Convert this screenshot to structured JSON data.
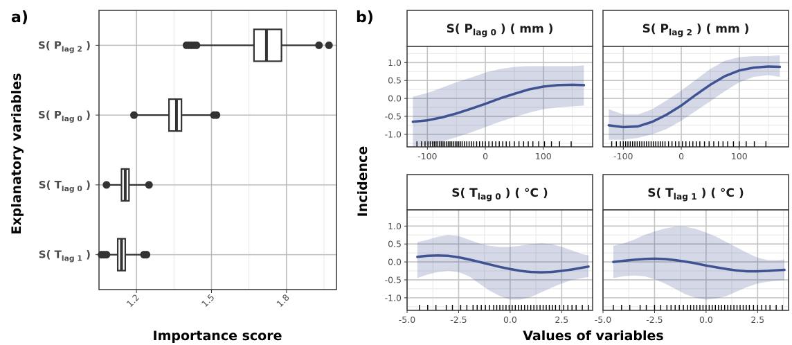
{
  "chart_data": [
    {
      "type": "boxplot",
      "panel_label": "a)",
      "xlabel": "Importance score",
      "ylabel": "Explanatory variables",
      "xlim": [
        1.05,
        2.0
      ],
      "xticks": [
        1.2,
        1.5,
        1.8
      ],
      "xtick_labels": [
        "1.2",
        "1.5",
        "1.8"
      ],
      "grid": true,
      "boxes": [
        {
          "label_main": "S( P",
          "label_sub": "lag 2",
          "label_end": " )",
          "whisker_low": 1.43,
          "q1": 1.67,
          "median": 1.72,
          "q3": 1.78,
          "whisker_high": 1.93,
          "outliers": [
            1.4,
            1.41,
            1.42,
            1.43,
            1.44,
            1.93,
            1.97
          ]
        },
        {
          "label_main": "S( P",
          "label_sub": "lag 0",
          "label_end": " )",
          "whisker_low": 1.19,
          "q1": 1.33,
          "median": 1.36,
          "q3": 1.38,
          "whisker_high": 1.51,
          "outliers": [
            1.19,
            1.51,
            1.52
          ]
        },
        {
          "label_main": "S( T",
          "label_sub": "lag 0",
          "label_end": " )",
          "whisker_low": 1.08,
          "q1": 1.14,
          "median": 1.155,
          "q3": 1.17,
          "whisker_high": 1.25,
          "outliers": [
            1.08,
            1.25
          ]
        },
        {
          "label_main": "S( T",
          "label_sub": "lag 1",
          "label_end": " )",
          "whisker_low": 1.06,
          "q1": 1.125,
          "median": 1.14,
          "q3": 1.155,
          "whisker_high": 1.23,
          "outliers": [
            1.06,
            1.07,
            1.08,
            1.23,
            1.24
          ]
        }
      ]
    },
    {
      "type": "line",
      "panel_label": "b)",
      "xlabel": "Values of variables",
      "ylabel": "Incidence",
      "ylim": [
        -1.35,
        1.45
      ],
      "yticks": [
        -1.0,
        -0.5,
        0.0,
        0.5,
        1.0
      ],
      "ytick_labels": [
        "-1.0",
        "-0.5",
        "0.0",
        "0.5",
        "1.0"
      ],
      "panels": [
        {
          "title_main": "S( P",
          "title_sub": "lag 0",
          "title_end": " ) ( mm )",
          "xlim": [
            -135,
            185
          ],
          "xticks": [
            -100,
            0,
            100
          ],
          "xtick_labels": [
            "-100",
            "0",
            "100"
          ],
          "show_xticks": true,
          "x": [
            -125,
            -100,
            -75,
            -50,
            -25,
            0,
            25,
            50,
            75,
            100,
            125,
            150,
            170
          ],
          "y": [
            -0.65,
            -0.61,
            -0.53,
            -0.42,
            -0.29,
            -0.15,
            0.0,
            0.13,
            0.25,
            0.33,
            0.37,
            0.38,
            0.37
          ],
          "lower": [
            -1.35,
            -1.3,
            -1.2,
            -1.08,
            -0.95,
            -0.8,
            -0.65,
            -0.52,
            -0.4,
            -0.3,
            -0.25,
            -0.22,
            -0.2
          ],
          "upper": [
            0.05,
            0.15,
            0.3,
            0.45,
            0.58,
            0.72,
            0.82,
            0.88,
            0.9,
            0.9,
            0.9,
            0.9,
            0.92
          ],
          "rug": [
            -118,
            -110,
            -104,
            -99,
            -95,
            -91,
            -88,
            -85,
            -82,
            -79,
            -76,
            -73,
            -70,
            -67,
            -64,
            -61,
            -58,
            -55,
            -52,
            -49,
            -46,
            -43,
            -40,
            -36,
            -32,
            -28,
            -24,
            -20,
            -15,
            -10,
            -5,
            0,
            6,
            12,
            18,
            24,
            30,
            36,
            42,
            50,
            58,
            66,
            74,
            82,
            92,
            102,
            114,
            128,
            148
          ]
        },
        {
          "title_main": "S( P",
          "title_sub": "lag 2",
          "title_end": " ) ( mm )",
          "xlim": [
            -135,
            185
          ],
          "xticks": [
            -100,
            0,
            100
          ],
          "xtick_labels": [
            "-100",
            "0",
            "100"
          ],
          "show_xticks": true,
          "x": [
            -125,
            -100,
            -75,
            -50,
            -25,
            0,
            25,
            50,
            75,
            100,
            125,
            150,
            170
          ],
          "y": [
            -0.75,
            -0.8,
            -0.78,
            -0.65,
            -0.45,
            -0.2,
            0.1,
            0.38,
            0.62,
            0.78,
            0.86,
            0.89,
            0.88
          ],
          "lower": [
            -1.15,
            -1.15,
            -1.1,
            -1.0,
            -0.85,
            -0.62,
            -0.35,
            -0.08,
            0.2,
            0.45,
            0.6,
            0.65,
            0.6
          ],
          "upper": [
            -0.3,
            -0.45,
            -0.45,
            -0.3,
            -0.05,
            0.22,
            0.52,
            0.82,
            1.05,
            1.15,
            1.18,
            1.18,
            1.2
          ],
          "rug": [
            -120,
            -112,
            -105,
            -100,
            -96,
            -92,
            -88,
            -84,
            -80,
            -76,
            -72,
            -68,
            -64,
            -60,
            -56,
            -52,
            -48,
            -44,
            -40,
            -36,
            -32,
            -28,
            -22,
            -16,
            -10,
            -4,
            2,
            8,
            14,
            20,
            26,
            32,
            40,
            48,
            56,
            64,
            72,
            80,
            90,
            100,
            112,
            126,
            146
          ]
        },
        {
          "title_main": "S( T",
          "title_sub": "lag 0",
          "title_end": " ) ( °C )",
          "xlim": [
            -5.0,
            4.0
          ],
          "xticks": [
            -5.0,
            -2.5,
            0.0,
            2.5
          ],
          "xtick_labels": [
            "-5.0",
            "-2.5",
            "0.0",
            "2.5"
          ],
          "show_xticks": true,
          "x": [
            -4.5,
            -4.0,
            -3.5,
            -3.0,
            -2.5,
            -2.0,
            -1.5,
            -1.0,
            -0.5,
            0.0,
            0.5,
            1.0,
            1.5,
            2.0,
            2.5,
            3.0,
            3.5,
            3.8
          ],
          "y": [
            0.14,
            0.17,
            0.18,
            0.17,
            0.13,
            0.07,
            0.0,
            -0.07,
            -0.14,
            -0.2,
            -0.25,
            -0.28,
            -0.29,
            -0.28,
            -0.25,
            -0.21,
            -0.16,
            -0.13
          ],
          "lower": [
            -0.45,
            -0.35,
            -0.28,
            -0.25,
            -0.28,
            -0.4,
            -0.6,
            -0.8,
            -0.95,
            -1.05,
            -1.05,
            -0.98,
            -0.85,
            -0.72,
            -0.6,
            -0.5,
            -0.45,
            -0.42
          ],
          "upper": [
            0.55,
            0.62,
            0.7,
            0.75,
            0.72,
            0.62,
            0.52,
            0.45,
            0.42,
            0.42,
            0.45,
            0.5,
            0.52,
            0.5,
            0.42,
            0.32,
            0.22,
            0.18
          ],
          "rug": [
            -4.4,
            -4.0,
            -3.6,
            -3.1,
            -2.8,
            -2.4,
            -2.1,
            -1.8,
            -1.6,
            -1.4,
            -1.2,
            -1.0,
            -0.8,
            -0.65,
            -0.5,
            -0.35,
            -0.2,
            -0.05,
            0.1,
            0.25,
            0.4,
            0.55,
            0.7,
            0.85,
            1.0,
            1.15,
            1.3,
            1.45,
            1.6,
            1.75,
            1.9,
            2.05,
            2.2,
            2.4,
            2.6,
            2.8,
            3.0,
            3.2,
            3.5,
            3.8
          ]
        },
        {
          "title_main": "S( T",
          "title_sub": "lag 1",
          "title_end": " ) ( °C )",
          "xlim": [
            -5.0,
            4.0
          ],
          "xticks": [
            -5.0,
            -2.5,
            0.0,
            2.5
          ],
          "xtick_labels": [
            "-5.0",
            "-2.5",
            "0.0",
            "2.5"
          ],
          "show_xticks": true,
          "x": [
            -4.5,
            -4.0,
            -3.5,
            -3.0,
            -2.5,
            -2.0,
            -1.5,
            -1.0,
            -0.5,
            0.0,
            0.5,
            1.0,
            1.5,
            2.0,
            2.5,
            3.0,
            3.5,
            3.8
          ],
          "y": [
            0.0,
            0.03,
            0.06,
            0.08,
            0.09,
            0.08,
            0.05,
            0.01,
            -0.04,
            -0.1,
            -0.15,
            -0.2,
            -0.24,
            -0.26,
            -0.26,
            -0.25,
            -0.23,
            -0.22
          ],
          "lower": [
            -0.45,
            -0.4,
            -0.38,
            -0.4,
            -0.48,
            -0.6,
            -0.75,
            -0.9,
            -1.0,
            -1.05,
            -1.02,
            -0.95,
            -0.82,
            -0.7,
            -0.6,
            -0.55,
            -0.52,
            -0.52
          ],
          "upper": [
            0.45,
            0.52,
            0.62,
            0.75,
            0.85,
            0.93,
            0.98,
            0.98,
            0.92,
            0.82,
            0.7,
            0.55,
            0.4,
            0.25,
            0.12,
            0.05,
            0.05,
            0.07
          ],
          "rug": [
            -4.5,
            -4.1,
            -3.7,
            -3.2,
            -2.9,
            -2.5,
            -2.2,
            -1.9,
            -1.7,
            -1.5,
            -1.3,
            -1.1,
            -0.9,
            -0.75,
            -0.6,
            -0.45,
            -0.3,
            -0.15,
            0.0,
            0.15,
            0.3,
            0.45,
            0.6,
            0.75,
            0.9,
            1.05,
            1.2,
            1.35,
            1.5,
            1.65,
            1.8,
            1.95,
            2.1,
            2.3,
            2.5,
            2.7,
            2.9,
            3.1,
            3.4,
            3.7
          ]
        }
      ]
    }
  ]
}
